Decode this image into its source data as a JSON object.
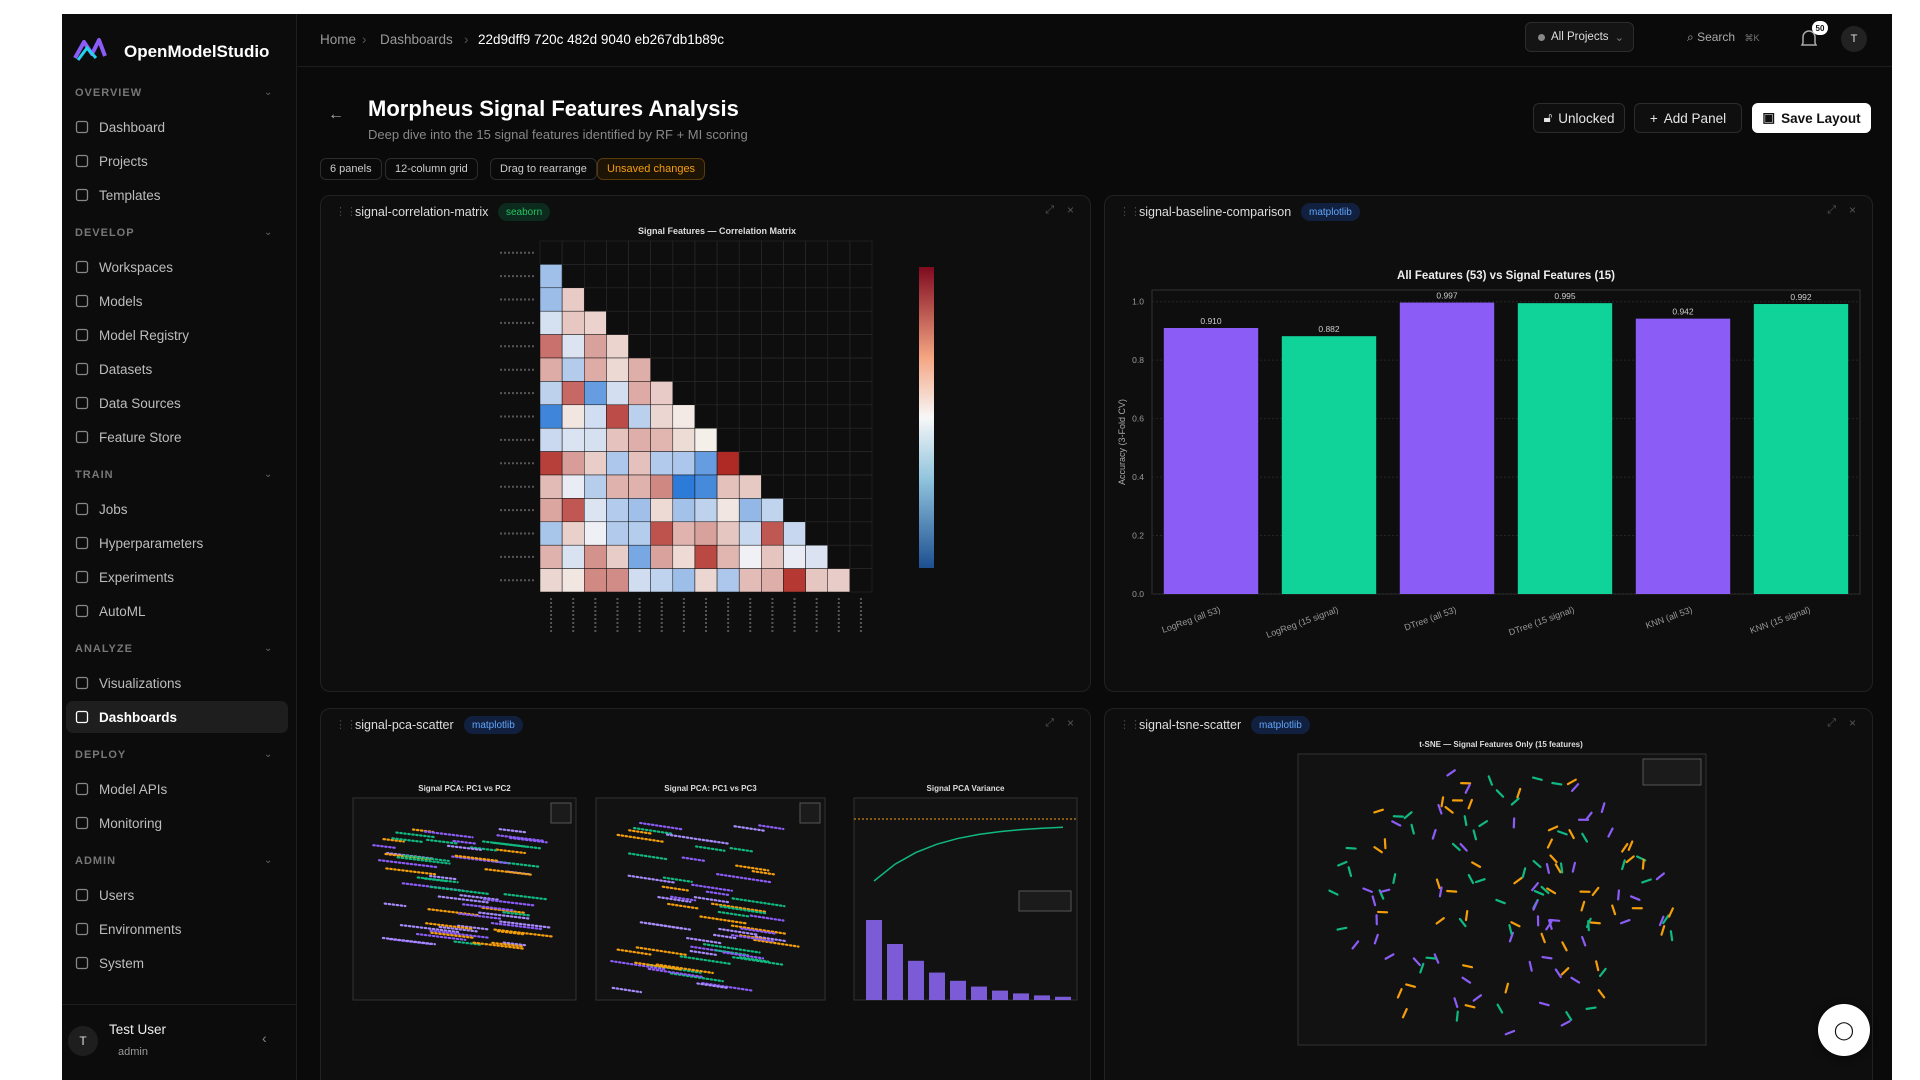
{
  "app": {
    "name": "OpenModelStudio"
  },
  "sidebar": {
    "sections": [
      {
        "title": "OVERVIEW",
        "items": [
          "Dashboard",
          "Projects",
          "Templates"
        ]
      },
      {
        "title": "DEVELOP",
        "items": [
          "Workspaces",
          "Models",
          "Model Registry",
          "Datasets",
          "Data Sources",
          "Feature Store"
        ]
      },
      {
        "title": "TRAIN",
        "items": [
          "Jobs",
          "Hyperparameters",
          "Experiments",
          "AutoML"
        ]
      },
      {
        "title": "ANALYZE",
        "items": [
          "Visualizations",
          "Dashboards"
        ]
      },
      {
        "title": "DEPLOY",
        "items": [
          "Model APIs",
          "Monitoring"
        ]
      },
      {
        "title": "ADMIN",
        "items": [
          "Users",
          "Environments",
          "System"
        ]
      }
    ],
    "user": {
      "initial": "T",
      "name": "Test User",
      "role": "admin"
    }
  },
  "breadcrumb": [
    "Home",
    "Dashboards",
    "22d9dff9 720c 482d 9040 eb267db1b89c"
  ],
  "topbar": {
    "projects": "All Projects",
    "search": "Search",
    "shortcut": "⌘K",
    "notifications": "50",
    "avatar": "T"
  },
  "header": {
    "title": "Morpheus Signal Features Analysis",
    "subtitle": "Deep dive into the 15 signal features identified by RF + MI scoring",
    "badges": [
      "6 panels",
      "12-column grid",
      "Drag to rearrange",
      "Unsaved changes"
    ],
    "buttons": [
      "Unlocked",
      "Add Panel",
      "Save Layout"
    ]
  },
  "panels": [
    {
      "name": "signal-correlation-matrix",
      "tag": "seaborn",
      "plot_title": "Signal Features — Correlation Matrix"
    },
    {
      "name": "signal-baseline-comparison",
      "tag": "matplotlib",
      "chart": {
        "type": "bar",
        "title": "All Features (53) vs Signal Features (15)",
        "y_label": "Accuracy (3-Fold CV)",
        "categories": [
          "LogReg (all 53)",
          "LogReg (15 signal)",
          "DTree (all 53)",
          "DTree (15 signal)",
          "KNN (all 53)",
          "KNN (15 signal)"
        ],
        "values": [
          0.91,
          0.882,
          0.997,
          0.995,
          0.942,
          0.992
        ],
        "value_labels": [
          "0.910",
          "0.882",
          "0.997",
          "0.995",
          "0.942",
          "0.992"
        ],
        "colors": [
          "#8b5cf6",
          "#10d39a",
          "#8b5cf6",
          "#10d39a",
          "#8b5cf6",
          "#10d39a"
        ],
        "ylim": [
          0,
          1.04
        ],
        "yticks": [
          {
            "value": 0,
            "label": "0.0"
          },
          {
            "value": 0.2,
            "label": "0.2"
          },
          {
            "value": 0.4,
            "label": "0.4"
          },
          {
            "value": 0.6,
            "label": "0.6"
          },
          {
            "value": 0.8,
            "label": "0.8"
          },
          {
            "value": 1,
            "label": "1.0"
          }
        ],
        "grid": true
      }
    },
    {
      "name": "signal-pca-scatter",
      "tag": "matplotlib",
      "plot_titles": [
        "Signal PCA: PC1 vs PC2",
        "Signal PCA: PC1 vs PC3",
        "Signal PCA Variance"
      ]
    },
    {
      "name": "signal-tsne-scatter",
      "tag": "matplotlib",
      "plot_title": "t-SNE — Signal Features Only (15 features)"
    }
  ]
}
